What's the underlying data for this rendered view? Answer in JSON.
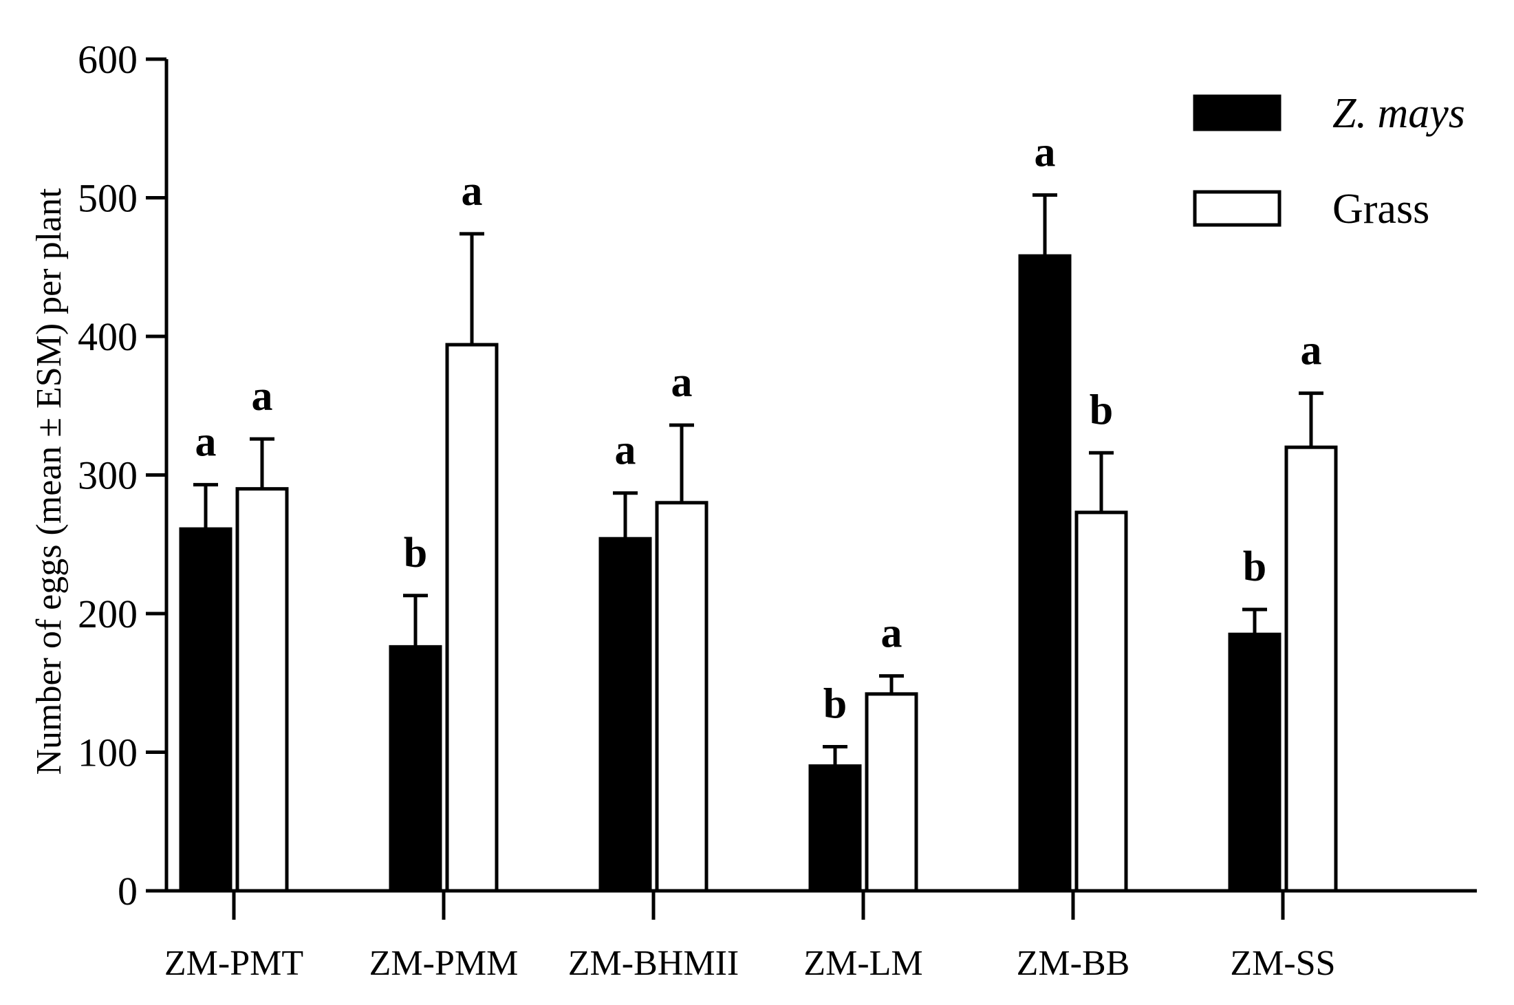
{
  "chart_data": {
    "type": "bar",
    "ylabel": "Number of eggs (mean ± ESM) per plant",
    "xlabel": "",
    "ylim": [
      0,
      600
    ],
    "yticks": [
      0,
      100,
      200,
      300,
      400,
      500,
      600
    ],
    "grid": false,
    "legend_position": "top-right",
    "categories": [
      "ZM-PMT",
      "ZM-PMM",
      "ZM-BHMII",
      "ZM-LM",
      "ZM-BB",
      "ZM-SS"
    ],
    "series": [
      {
        "name": "Z. mays",
        "fill": "#000000",
        "values": [
          261,
          176,
          254,
          90,
          458,
          185
        ],
        "errors": [
          32,
          37,
          33,
          14,
          44,
          18
        ],
        "significance": [
          "a",
          "b",
          "a",
          "b",
          "a",
          "b"
        ]
      },
      {
        "name": "Grass",
        "fill": "#ffffff",
        "values": [
          290,
          394,
          280,
          142,
          273,
          320
        ],
        "errors": [
          36,
          80,
          56,
          13,
          43,
          39
        ],
        "significance": [
          "a",
          "a",
          "a",
          "a",
          "b",
          "a"
        ]
      }
    ]
  }
}
